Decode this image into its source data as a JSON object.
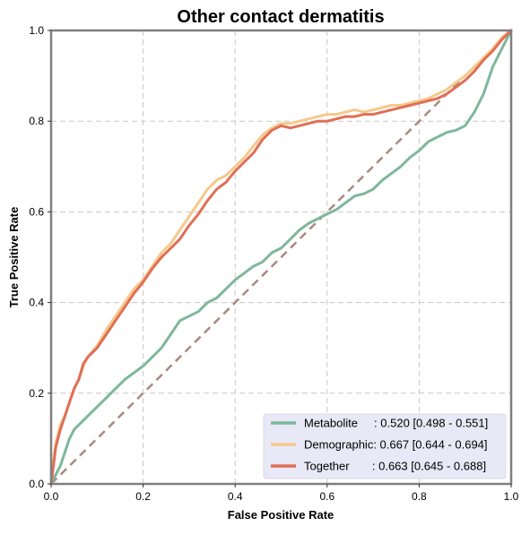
{
  "chart_data": {
    "type": "line",
    "title": "Other contact dermatitis",
    "xlabel": "False Positive Rate",
    "ylabel": "True Positive Rate",
    "xlim": [
      0,
      1
    ],
    "ylim": [
      0,
      1
    ],
    "x_ticks": [
      "0.0",
      "0.2",
      "0.4",
      "0.6",
      "0.8",
      "1.0"
    ],
    "y_ticks": [
      "0.0",
      "0.2",
      "0.4",
      "0.6",
      "0.8",
      "1.0"
    ],
    "grid": true,
    "legend_position": "bottom-right",
    "diagonal_color": "#a88a80",
    "series": [
      {
        "name": "Metabolite",
        "legend_label": "Metabolite     : 0.520 [0.498 - 0.551]",
        "color": "#7fb79b",
        "points": [
          [
            0,
            0
          ],
          [
            0.01,
            0.02
          ],
          [
            0.02,
            0.04
          ],
          [
            0.03,
            0.07
          ],
          [
            0.04,
            0.1
          ],
          [
            0.05,
            0.12
          ],
          [
            0.06,
            0.13
          ],
          [
            0.07,
            0.14
          ],
          [
            0.08,
            0.15
          ],
          [
            0.1,
            0.17
          ],
          [
            0.12,
            0.19
          ],
          [
            0.14,
            0.21
          ],
          [
            0.16,
            0.23
          ],
          [
            0.18,
            0.245
          ],
          [
            0.2,
            0.26
          ],
          [
            0.22,
            0.28
          ],
          [
            0.24,
            0.3
          ],
          [
            0.26,
            0.33
          ],
          [
            0.28,
            0.36
          ],
          [
            0.3,
            0.37
          ],
          [
            0.32,
            0.38
          ],
          [
            0.34,
            0.4
          ],
          [
            0.36,
            0.41
          ],
          [
            0.38,
            0.43
          ],
          [
            0.4,
            0.45
          ],
          [
            0.42,
            0.465
          ],
          [
            0.44,
            0.48
          ],
          [
            0.46,
            0.49
          ],
          [
            0.48,
            0.51
          ],
          [
            0.5,
            0.52
          ],
          [
            0.52,
            0.54
          ],
          [
            0.54,
            0.56
          ],
          [
            0.56,
            0.575
          ],
          [
            0.58,
            0.585
          ],
          [
            0.6,
            0.595
          ],
          [
            0.62,
            0.605
          ],
          [
            0.64,
            0.62
          ],
          [
            0.66,
            0.635
          ],
          [
            0.68,
            0.64
          ],
          [
            0.7,
            0.65
          ],
          [
            0.72,
            0.67
          ],
          [
            0.74,
            0.685
          ],
          [
            0.76,
            0.7
          ],
          [
            0.78,
            0.72
          ],
          [
            0.8,
            0.735
          ],
          [
            0.82,
            0.755
          ],
          [
            0.84,
            0.765
          ],
          [
            0.86,
            0.775
          ],
          [
            0.88,
            0.78
          ],
          [
            0.9,
            0.79
          ],
          [
            0.92,
            0.82
          ],
          [
            0.94,
            0.86
          ],
          [
            0.96,
            0.92
          ],
          [
            0.98,
            0.96
          ],
          [
            1.0,
            1.0
          ]
        ]
      },
      {
        "name": "Demographic",
        "legend_label": "Demographic: 0.667 [0.644 - 0.694]",
        "color": "#f5c98c",
        "points": [
          [
            0,
            0
          ],
          [
            0.005,
            0.05
          ],
          [
            0.01,
            0.09
          ],
          [
            0.02,
            0.13
          ],
          [
            0.03,
            0.15
          ],
          [
            0.04,
            0.18
          ],
          [
            0.05,
            0.21
          ],
          [
            0.06,
            0.23
          ],
          [
            0.07,
            0.26
          ],
          [
            0.08,
            0.28
          ],
          [
            0.1,
            0.305
          ],
          [
            0.12,
            0.34
          ],
          [
            0.14,
            0.37
          ],
          [
            0.16,
            0.4
          ],
          [
            0.18,
            0.43
          ],
          [
            0.2,
            0.45
          ],
          [
            0.22,
            0.48
          ],
          [
            0.24,
            0.51
          ],
          [
            0.26,
            0.53
          ],
          [
            0.28,
            0.56
          ],
          [
            0.3,
            0.59
          ],
          [
            0.32,
            0.62
          ],
          [
            0.34,
            0.65
          ],
          [
            0.36,
            0.67
          ],
          [
            0.38,
            0.68
          ],
          [
            0.4,
            0.7
          ],
          [
            0.42,
            0.72
          ],
          [
            0.44,
            0.745
          ],
          [
            0.46,
            0.77
          ],
          [
            0.48,
            0.785
          ],
          [
            0.5,
            0.795
          ],
          [
            0.52,
            0.795
          ],
          [
            0.54,
            0.8
          ],
          [
            0.56,
            0.805
          ],
          [
            0.58,
            0.81
          ],
          [
            0.6,
            0.815
          ],
          [
            0.62,
            0.815
          ],
          [
            0.64,
            0.82
          ],
          [
            0.66,
            0.825
          ],
          [
            0.68,
            0.82
          ],
          [
            0.7,
            0.825
          ],
          [
            0.72,
            0.83
          ],
          [
            0.74,
            0.835
          ],
          [
            0.76,
            0.835
          ],
          [
            0.78,
            0.84
          ],
          [
            0.8,
            0.845
          ],
          [
            0.82,
            0.85
          ],
          [
            0.84,
            0.86
          ],
          [
            0.86,
            0.87
          ],
          [
            0.88,
            0.885
          ],
          [
            0.9,
            0.9
          ],
          [
            0.92,
            0.92
          ],
          [
            0.94,
            0.94
          ],
          [
            0.96,
            0.96
          ],
          [
            0.98,
            0.985
          ],
          [
            1.0,
            1.0
          ]
        ]
      },
      {
        "name": "Together",
        "legend_label": "Together       : 0.663 [0.645 - 0.688]",
        "color": "#e06f55",
        "points": [
          [
            0,
            0
          ],
          [
            0.005,
            0.04
          ],
          [
            0.01,
            0.08
          ],
          [
            0.02,
            0.12
          ],
          [
            0.03,
            0.15
          ],
          [
            0.04,
            0.18
          ],
          [
            0.05,
            0.21
          ],
          [
            0.06,
            0.23
          ],
          [
            0.07,
            0.265
          ],
          [
            0.08,
            0.28
          ],
          [
            0.1,
            0.3
          ],
          [
            0.12,
            0.33
          ],
          [
            0.14,
            0.36
          ],
          [
            0.16,
            0.39
          ],
          [
            0.18,
            0.42
          ],
          [
            0.2,
            0.445
          ],
          [
            0.22,
            0.475
          ],
          [
            0.24,
            0.5
          ],
          [
            0.26,
            0.52
          ],
          [
            0.28,
            0.54
          ],
          [
            0.3,
            0.57
          ],
          [
            0.32,
            0.595
          ],
          [
            0.34,
            0.625
          ],
          [
            0.36,
            0.65
          ],
          [
            0.38,
            0.665
          ],
          [
            0.4,
            0.69
          ],
          [
            0.42,
            0.71
          ],
          [
            0.44,
            0.73
          ],
          [
            0.46,
            0.76
          ],
          [
            0.48,
            0.78
          ],
          [
            0.5,
            0.79
          ],
          [
            0.52,
            0.785
          ],
          [
            0.54,
            0.79
          ],
          [
            0.56,
            0.795
          ],
          [
            0.58,
            0.8
          ],
          [
            0.6,
            0.8
          ],
          [
            0.62,
            0.805
          ],
          [
            0.64,
            0.81
          ],
          [
            0.66,
            0.81
          ],
          [
            0.68,
            0.815
          ],
          [
            0.7,
            0.815
          ],
          [
            0.72,
            0.82
          ],
          [
            0.74,
            0.825
          ],
          [
            0.76,
            0.83
          ],
          [
            0.78,
            0.835
          ],
          [
            0.8,
            0.84
          ],
          [
            0.82,
            0.845
          ],
          [
            0.84,
            0.85
          ],
          [
            0.86,
            0.86
          ],
          [
            0.88,
            0.875
          ],
          [
            0.9,
            0.89
          ],
          [
            0.92,
            0.91
          ],
          [
            0.94,
            0.935
          ],
          [
            0.96,
            0.955
          ],
          [
            0.98,
            0.98
          ],
          [
            1.0,
            1.0
          ]
        ]
      }
    ]
  }
}
